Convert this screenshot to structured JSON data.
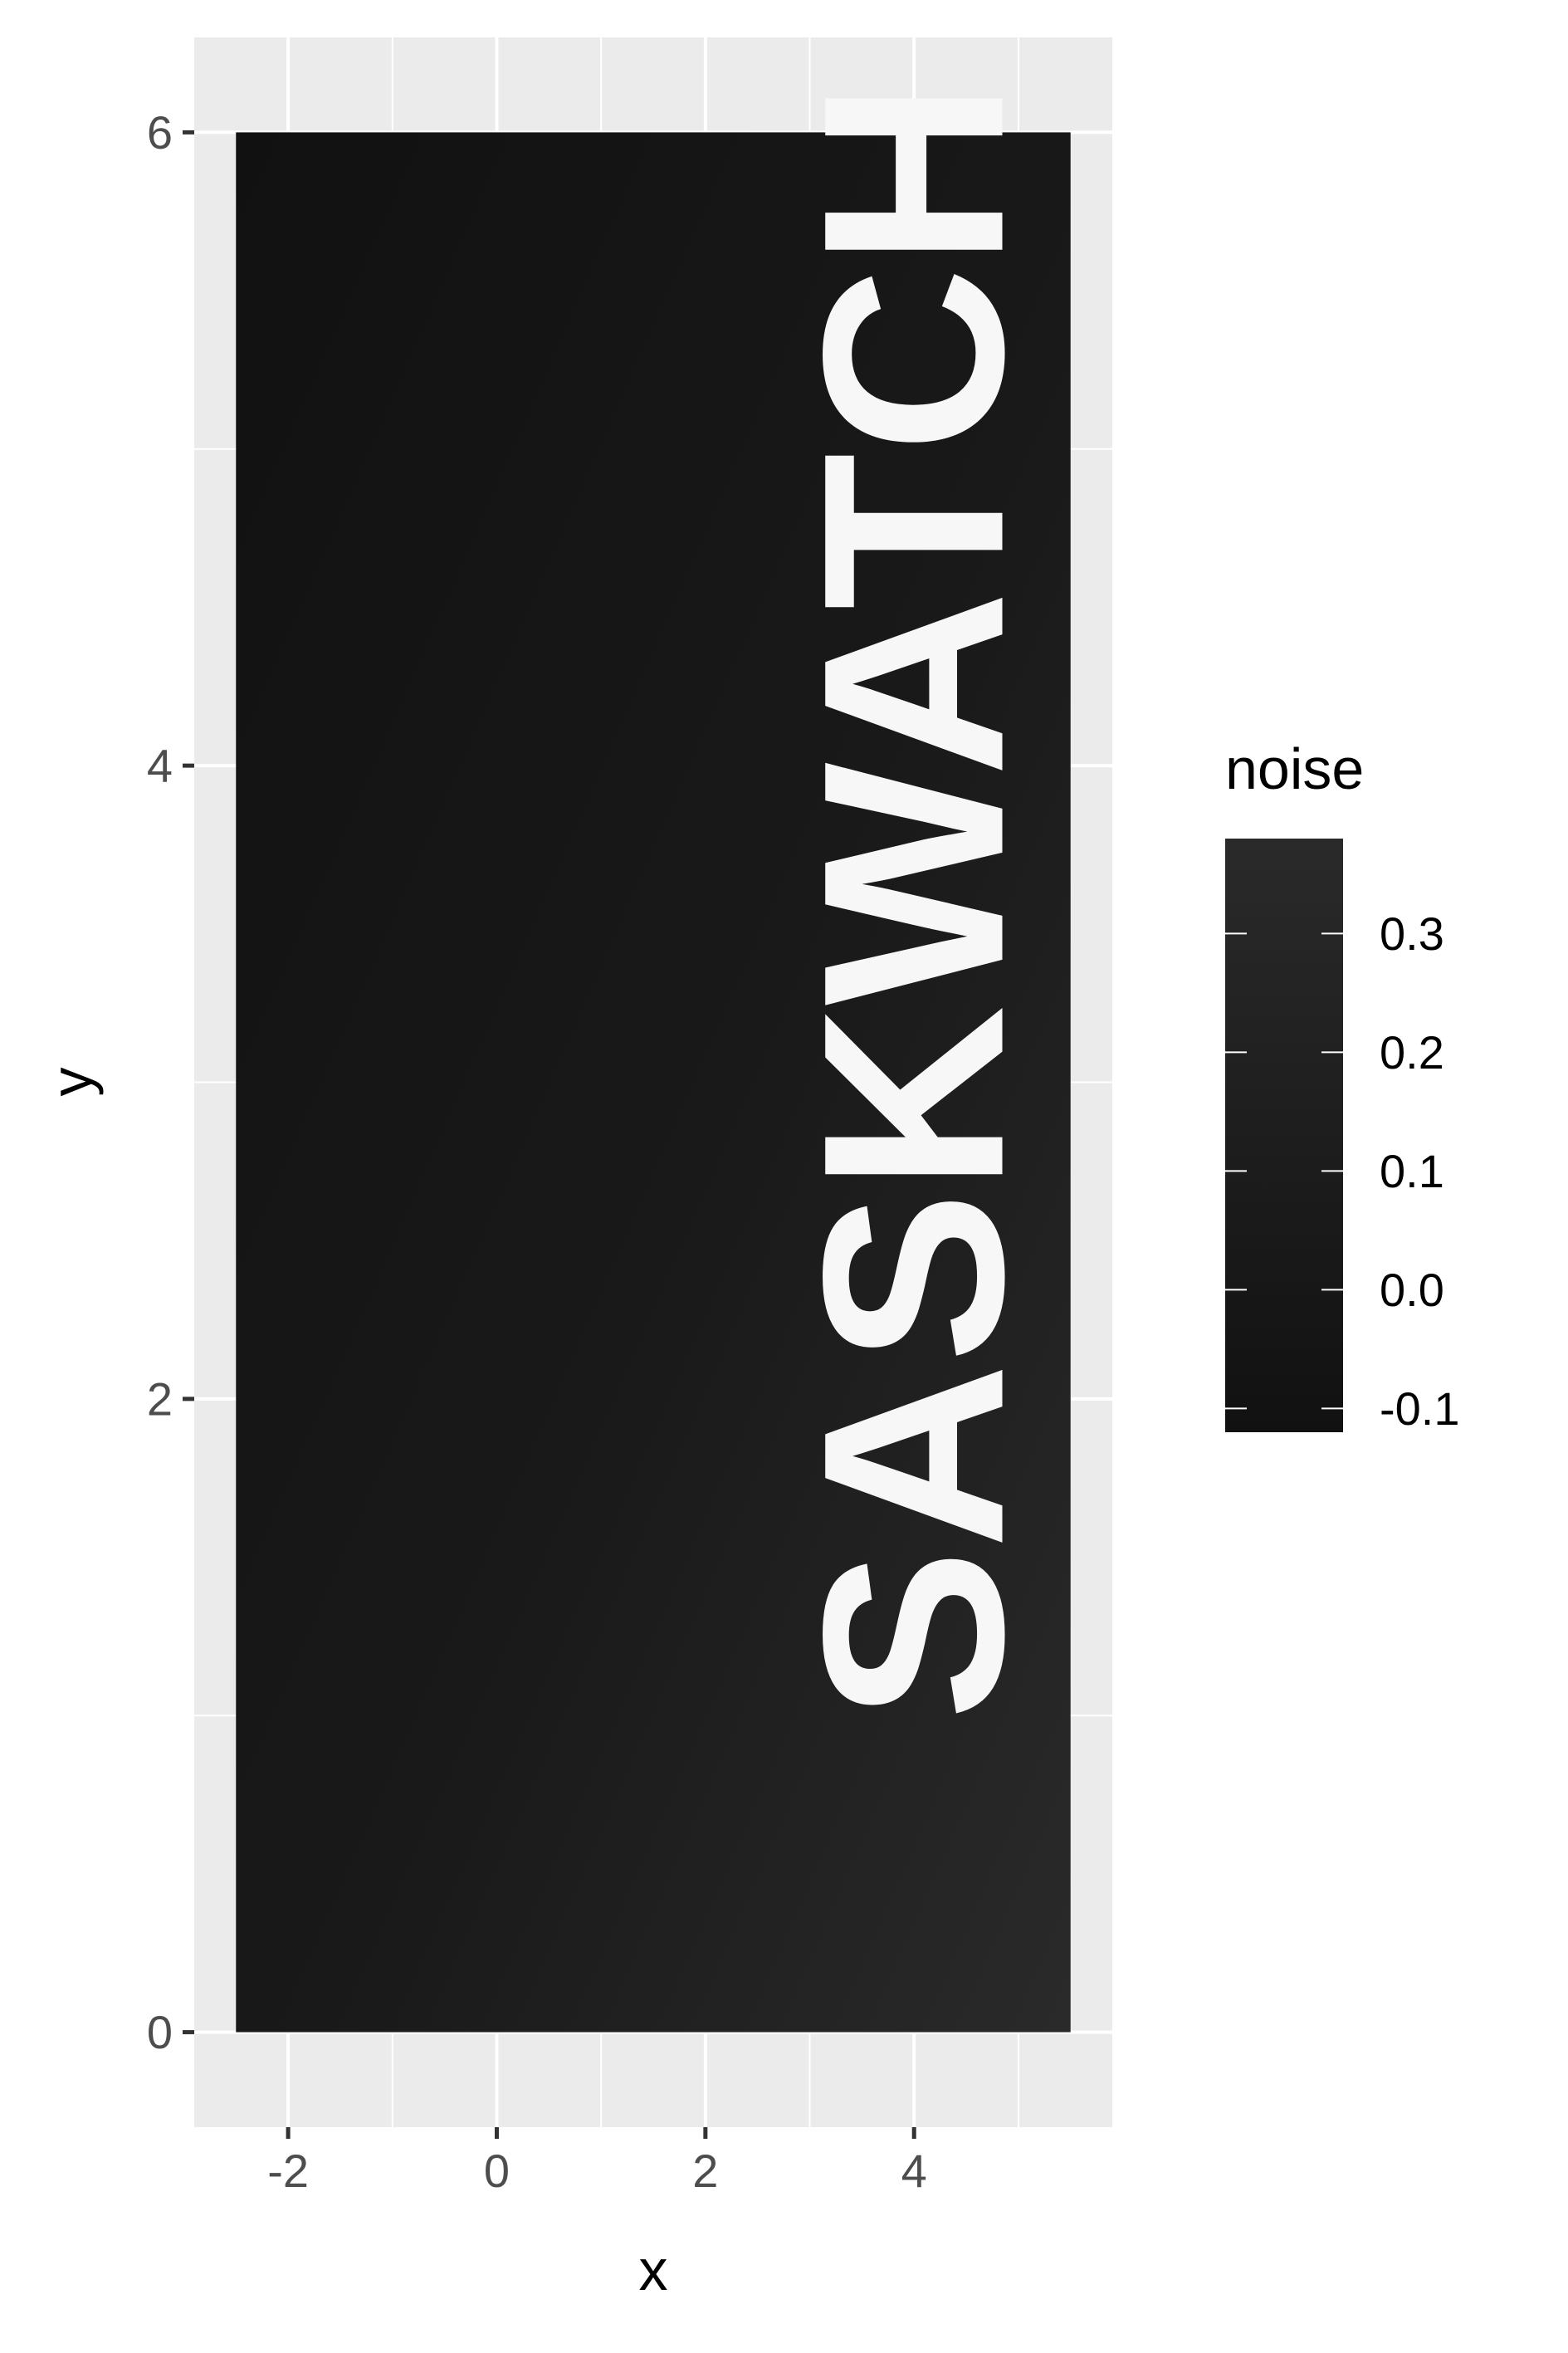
{
  "chart_data": {
    "type": "heatmap",
    "title": "",
    "xlabel": "x",
    "ylabel": "y",
    "xlim": [
      -2.9,
      5.9
    ],
    "ylim": [
      -0.3,
      6.3
    ],
    "x_ticks": [
      -2,
      0,
      2,
      4
    ],
    "y_ticks": [
      0,
      2,
      4,
      6
    ],
    "x_tick_labels": [
      "-2",
      "0",
      "2",
      "4"
    ],
    "y_tick_labels": [
      "0",
      "2",
      "4",
      "6"
    ],
    "grid": true,
    "raster_extent": {
      "x": [
        -2.5,
        5.5
      ],
      "y": [
        0,
        6
      ]
    },
    "fill": {
      "name": "noise",
      "range": [
        -0.12,
        0.38
      ],
      "breaks": [
        -0.1,
        0.0,
        0.1,
        0.2,
        0.3
      ],
      "break_labels": [
        "-0.1",
        "0.0",
        "0.1",
        "0.2",
        "0.3"
      ],
      "low_color": "#111111",
      "high_color": "#2a2a2a"
    },
    "annotation": {
      "text": "SASKWATCH",
      "rotation": "vertical, reading bottom-to-top",
      "color": "#f7f7f7"
    },
    "legend_placement": "right"
  }
}
